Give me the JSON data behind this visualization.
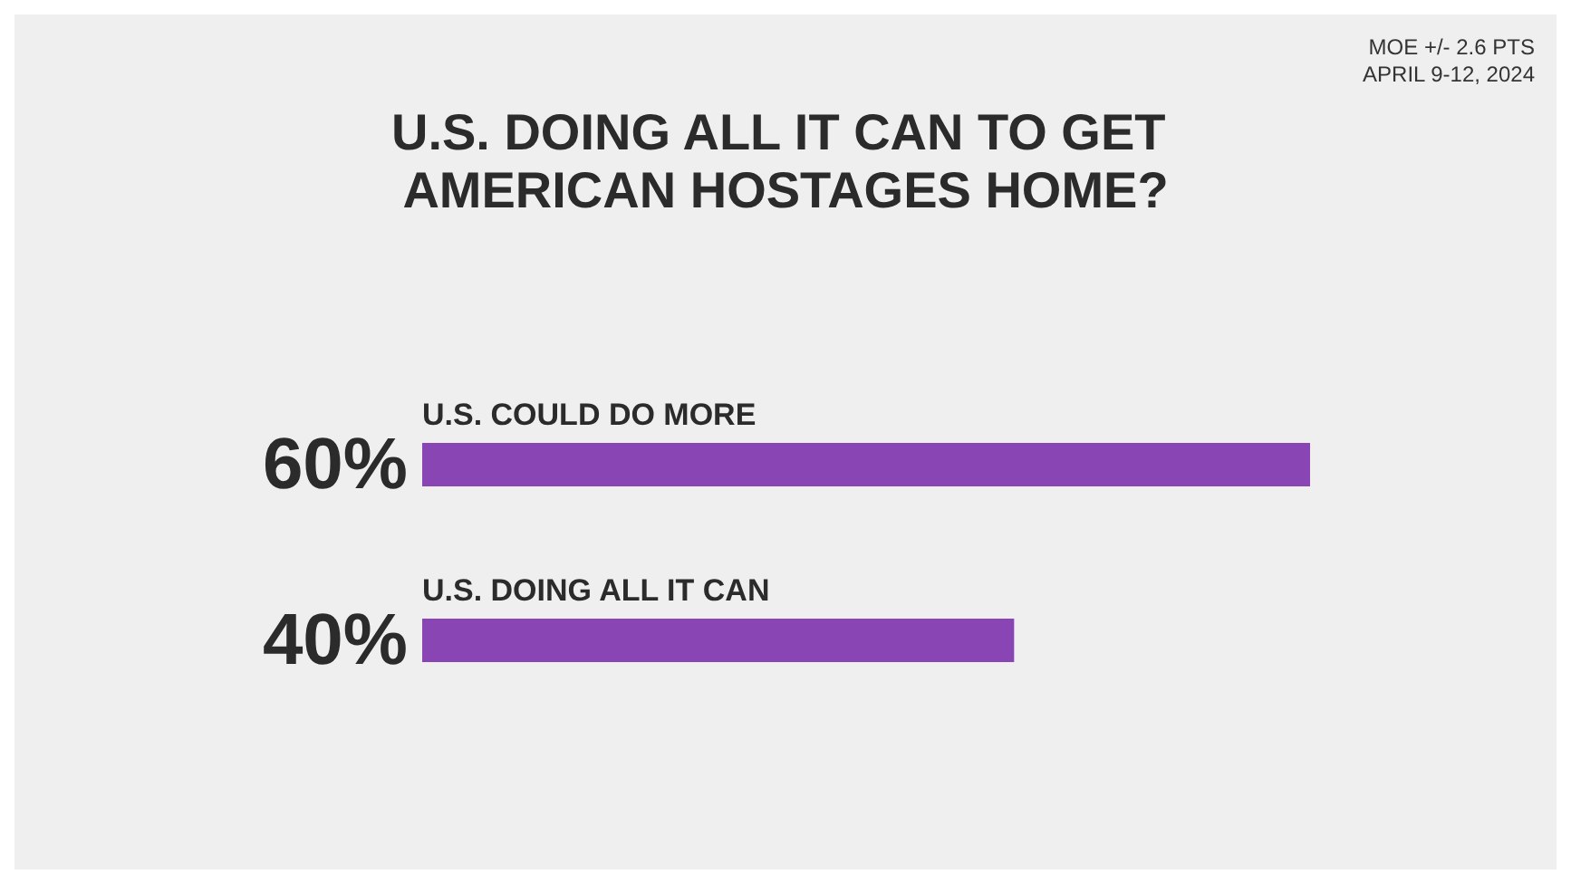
{
  "chart_data": {
    "type": "bar",
    "orientation": "horizontal",
    "title": "U.S. DOING ALL IT CAN TO GET AMERICAN HOSTAGES HOME?",
    "annotations": [
      "MOE +/- 2.6 PTS",
      "APRIL 9-12, 2024"
    ],
    "categories": [
      "U.S. COULD DO MORE",
      "U.S. DOING ALL IT CAN"
    ],
    "values": [
      60,
      40
    ],
    "value_labels": [
      "60%",
      "40%"
    ],
    "color": "#8a45b4"
  }
}
